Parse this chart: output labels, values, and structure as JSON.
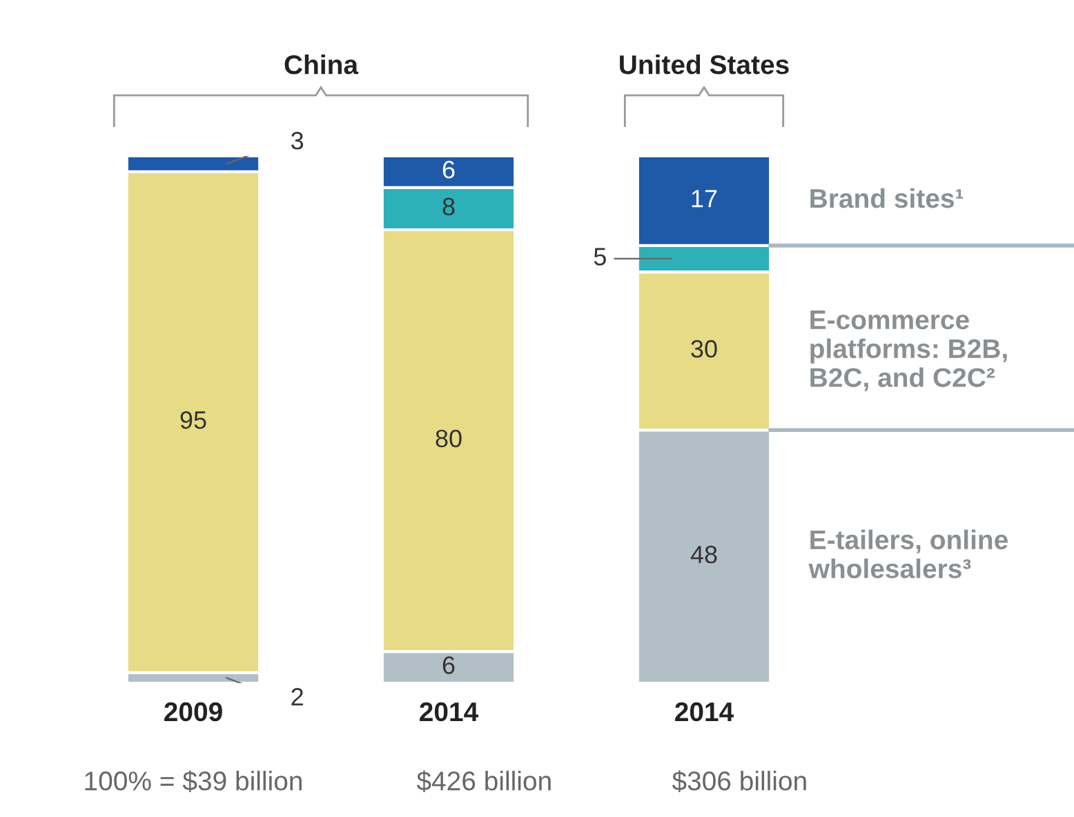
{
  "chart_data": {
    "type": "bar",
    "stacked": true,
    "categories": [
      "2009",
      "2014",
      "2014"
    ],
    "series": [
      {
        "name": "E-tailers, online wholesalers³",
        "color": "#b3bfc7",
        "values": [
          2,
          6,
          48
        ]
      },
      {
        "name": "E-commerce platforms: B2B, B2C, and C2C²",
        "color": "#e8db87",
        "values": [
          95,
          80,
          30
        ]
      },
      {
        "color": "#2eb0b8",
        "values": [
          null,
          8,
          5
        ]
      },
      {
        "name": "Brand sites¹",
        "color": "#1e5aa8",
        "values": [
          3,
          6,
          17
        ]
      }
    ],
    "data_labels": true,
    "annotations": [
      "China",
      "United States",
      "100% = $39 billion",
      "$426 billion",
      "$306 billion"
    ]
  }
}
